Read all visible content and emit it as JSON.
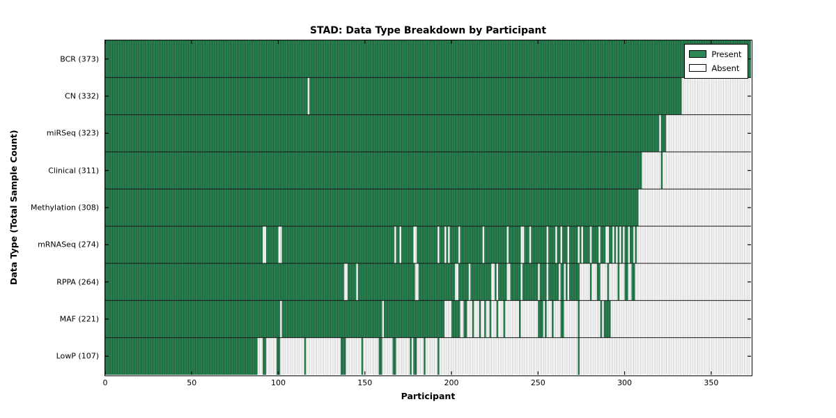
{
  "title": "STAD: Data Type Breakdown by Participant",
  "axes": {
    "x_label": "Participant",
    "y_label": "Data Type (Total Sample Count)"
  },
  "chart_data": {
    "type": "heatmap",
    "title": "STAD: Data Type Breakdown by Participant",
    "xlabel": "Participant",
    "ylabel": "Data Type (Total Sample Count)",
    "n_participants": 373,
    "xlim": [
      0,
      373
    ],
    "x_ticks": [
      0,
      50,
      100,
      150,
      200,
      250,
      300,
      350
    ],
    "legend": [
      {
        "label": "Present",
        "color": "#2e8757"
      },
      {
        "label": "Absent",
        "color": "#ffffff"
      }
    ],
    "colors": {
      "present_fill": "#2e8757",
      "present_edge": "#17512f",
      "absent_fill": "#ffffff",
      "absent_edge": "#c2c2c2",
      "row_divider": "#161616",
      "tick": "#000000"
    },
    "rows": [
      {
        "label": "BCR",
        "count": 373,
        "absent_ranges": []
      },
      {
        "label": "CN",
        "count": 332,
        "absent_ranges": [
          [
            117,
            118
          ],
          [
            333,
            373
          ]
        ]
      },
      {
        "label": "miRSeq",
        "count": 323,
        "absent_ranges": [
          [
            320,
            321
          ],
          [
            324,
            373
          ]
        ]
      },
      {
        "label": "Clinical",
        "count": 311,
        "absent_ranges": [
          [
            310,
            321
          ],
          [
            322,
            373
          ]
        ]
      },
      {
        "label": "Methylation",
        "count": 308,
        "absent_ranges": [
          [
            308,
            373
          ]
        ]
      },
      {
        "label": "mRNASeq",
        "count": 274,
        "absent_ranges": [
          [
            91,
            93
          ],
          [
            100,
            102
          ],
          [
            167,
            168
          ],
          [
            170,
            171
          ],
          [
            178,
            180
          ],
          [
            192,
            193
          ],
          [
            196,
            197
          ],
          [
            198,
            199
          ],
          [
            204,
            205
          ],
          [
            218,
            219
          ],
          [
            232,
            233
          ],
          [
            240,
            242
          ],
          [
            245,
            246
          ],
          [
            255,
            256
          ],
          [
            260,
            261
          ],
          [
            263,
            264
          ],
          [
            267,
            268
          ],
          [
            273,
            274
          ],
          [
            275,
            276
          ],
          [
            280,
            281
          ],
          [
            285,
            286
          ],
          [
            289,
            291
          ],
          [
            293,
            294
          ],
          [
            295,
            296
          ],
          [
            297,
            298
          ],
          [
            299,
            300
          ],
          [
            302,
            303
          ],
          [
            305,
            306
          ],
          [
            307,
            373
          ]
        ]
      },
      {
        "label": "RPPA",
        "count": 264,
        "absent_ranges": [
          [
            138,
            140
          ],
          [
            145,
            146
          ],
          [
            179,
            181
          ],
          [
            202,
            204
          ],
          [
            210,
            211
          ],
          [
            223,
            225
          ],
          [
            226,
            227
          ],
          [
            232,
            234
          ],
          [
            240,
            241
          ],
          [
            250,
            251
          ],
          [
            255,
            256
          ],
          [
            262,
            263
          ],
          [
            265,
            266
          ],
          [
            267,
            268
          ],
          [
            274,
            280
          ],
          [
            281,
            284
          ],
          [
            286,
            290
          ],
          [
            291,
            296
          ],
          [
            297,
            300
          ],
          [
            302,
            304
          ],
          [
            306,
            373
          ]
        ]
      },
      {
        "label": "MAF",
        "count": 221,
        "absent_ranges": [
          [
            101,
            102
          ],
          [
            160,
            161
          ],
          [
            196,
            200
          ],
          [
            205,
            207
          ],
          [
            209,
            212
          ],
          [
            213,
            216
          ],
          [
            217,
            219
          ],
          [
            220,
            222
          ],
          [
            223,
            226
          ],
          [
            227,
            230
          ],
          [
            231,
            239
          ],
          [
            240,
            250
          ],
          [
            253,
            254
          ],
          [
            255,
            258
          ],
          [
            259,
            263
          ],
          [
            265,
            273
          ],
          [
            274,
            286
          ],
          [
            287,
            288
          ],
          [
            292,
            373
          ]
        ]
      },
      {
        "label": "LowP",
        "count": 107,
        "absent_ranges": [
          [
            88,
            91
          ],
          [
            93,
            99
          ],
          [
            101,
            115
          ],
          [
            116,
            136
          ],
          [
            139,
            148
          ],
          [
            149,
            158
          ],
          [
            160,
            166
          ],
          [
            168,
            176
          ],
          [
            177,
            178
          ],
          [
            180,
            184
          ],
          [
            185,
            192
          ],
          [
            193,
            273
          ],
          [
            274,
            373
          ]
        ]
      }
    ]
  }
}
